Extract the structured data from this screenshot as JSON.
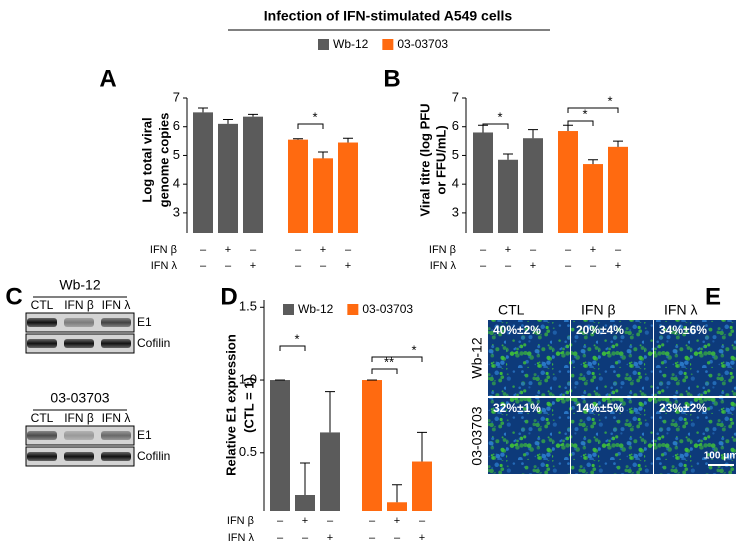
{
  "header": {
    "title": "Infection of IFN-stimulated A549 cells"
  },
  "chart_data": [
    {
      "panel": "A",
      "type": "bar",
      "ylabel": [
        "Log total viral",
        "genome copies"
      ],
      "ylim": [
        2.3,
        7
      ],
      "yticks": [
        3,
        4,
        5,
        6,
        7
      ],
      "series": [
        {
          "name": "Wb-12",
          "color": "#5b5b5b",
          "values": [
            6.5,
            6.1,
            6.35
          ],
          "errors": [
            0.15,
            0.15,
            0.08
          ]
        },
        {
          "name": "03-03703",
          "color": "#ff6a10",
          "values": [
            5.55,
            4.9,
            5.45
          ],
          "errors": [
            0.03,
            0.22,
            0.15
          ]
        }
      ],
      "treatments": [
        {
          "name": "IFN β",
          "values": [
            "–",
            "+",
            "–",
            "–",
            "+",
            "–"
          ]
        },
        {
          "name": "IFN λ",
          "values": [
            "–",
            "–",
            "+",
            "–",
            "–",
            "+"
          ]
        }
      ],
      "annotations": [
        "*"
      ]
    },
    {
      "panel": "B",
      "type": "bar",
      "ylabel": [
        "Viral titre (log PFU",
        "or FFU/mL)"
      ],
      "ylim": [
        2.3,
        7
      ],
      "yticks": [
        3,
        4,
        5,
        6,
        7
      ],
      "series": [
        {
          "name": "Wb-12",
          "color": "#5b5b5b",
          "values": [
            5.8,
            4.85,
            5.6
          ],
          "errors": [
            0.25,
            0.2,
            0.3
          ]
        },
        {
          "name": "03-03703",
          "color": "#ff6a10",
          "values": [
            5.85,
            4.7,
            5.3
          ],
          "errors": [
            0.2,
            0.15,
            0.2
          ]
        }
      ],
      "treatments": [
        {
          "name": "IFN β",
          "values": [
            "–",
            "+",
            "–",
            "–",
            "+",
            "–"
          ]
        },
        {
          "name": "IFN λ",
          "values": [
            "–",
            "–",
            "+",
            "–",
            "–",
            "+"
          ]
        }
      ],
      "annotations": [
        "*",
        "*",
        "*"
      ]
    },
    {
      "panel": "D",
      "type": "bar",
      "ylabel": [
        "Relative E1 expression",
        "(CTL = 1)"
      ],
      "ylim": [
        0.1,
        1.55
      ],
      "yticks": [
        0.5,
        {
          "value": 1,
          "label": "1.0"
        },
        1.5
      ],
      "series": [
        {
          "name": "Wb-12",
          "color": "#5b5b5b",
          "values": [
            1.0,
            0.21,
            0.64
          ],
          "errors": [
            0,
            0.22,
            0.28
          ]
        },
        {
          "name": "03-03703",
          "color": "#ff6a10",
          "values": [
            1.0,
            0.16,
            0.44
          ],
          "errors": [
            0,
            0.12,
            0.2
          ]
        }
      ],
      "treatments": [
        {
          "name": "IFN β",
          "values": [
            "–",
            "+",
            "–",
            "–",
            "+",
            "–"
          ]
        },
        {
          "name": "IFN λ",
          "values": [
            "–",
            "–",
            "+",
            "–",
            "–",
            "+"
          ]
        }
      ],
      "annotations": [
        "*",
        "**",
        "*"
      ]
    }
  ],
  "blots": {
    "panel": "C",
    "items": [
      {
        "title": "Wb-12",
        "lanes": [
          "CTL",
          "IFN β",
          "IFN λ"
        ],
        "bands": [
          "E1",
          "Cofilin"
        ]
      },
      {
        "title": "03-03703",
        "lanes": [
          "CTL",
          "IFN β",
          "IFN λ"
        ],
        "bands": [
          "E1",
          "Cofilin"
        ]
      }
    ]
  },
  "images": {
    "panel": "E",
    "columns": [
      "CTL",
      "IFN β",
      "IFN λ"
    ],
    "rows": [
      {
        "label": "Wb-12",
        "values": [
          "40%±2%",
          "20%±4%",
          "34%±6%"
        ]
      },
      {
        "label": "03-03703",
        "values": [
          "32%±1%",
          "14%±5%",
          "23%±2%"
        ]
      }
    ],
    "scale_bar": "100 μm"
  }
}
